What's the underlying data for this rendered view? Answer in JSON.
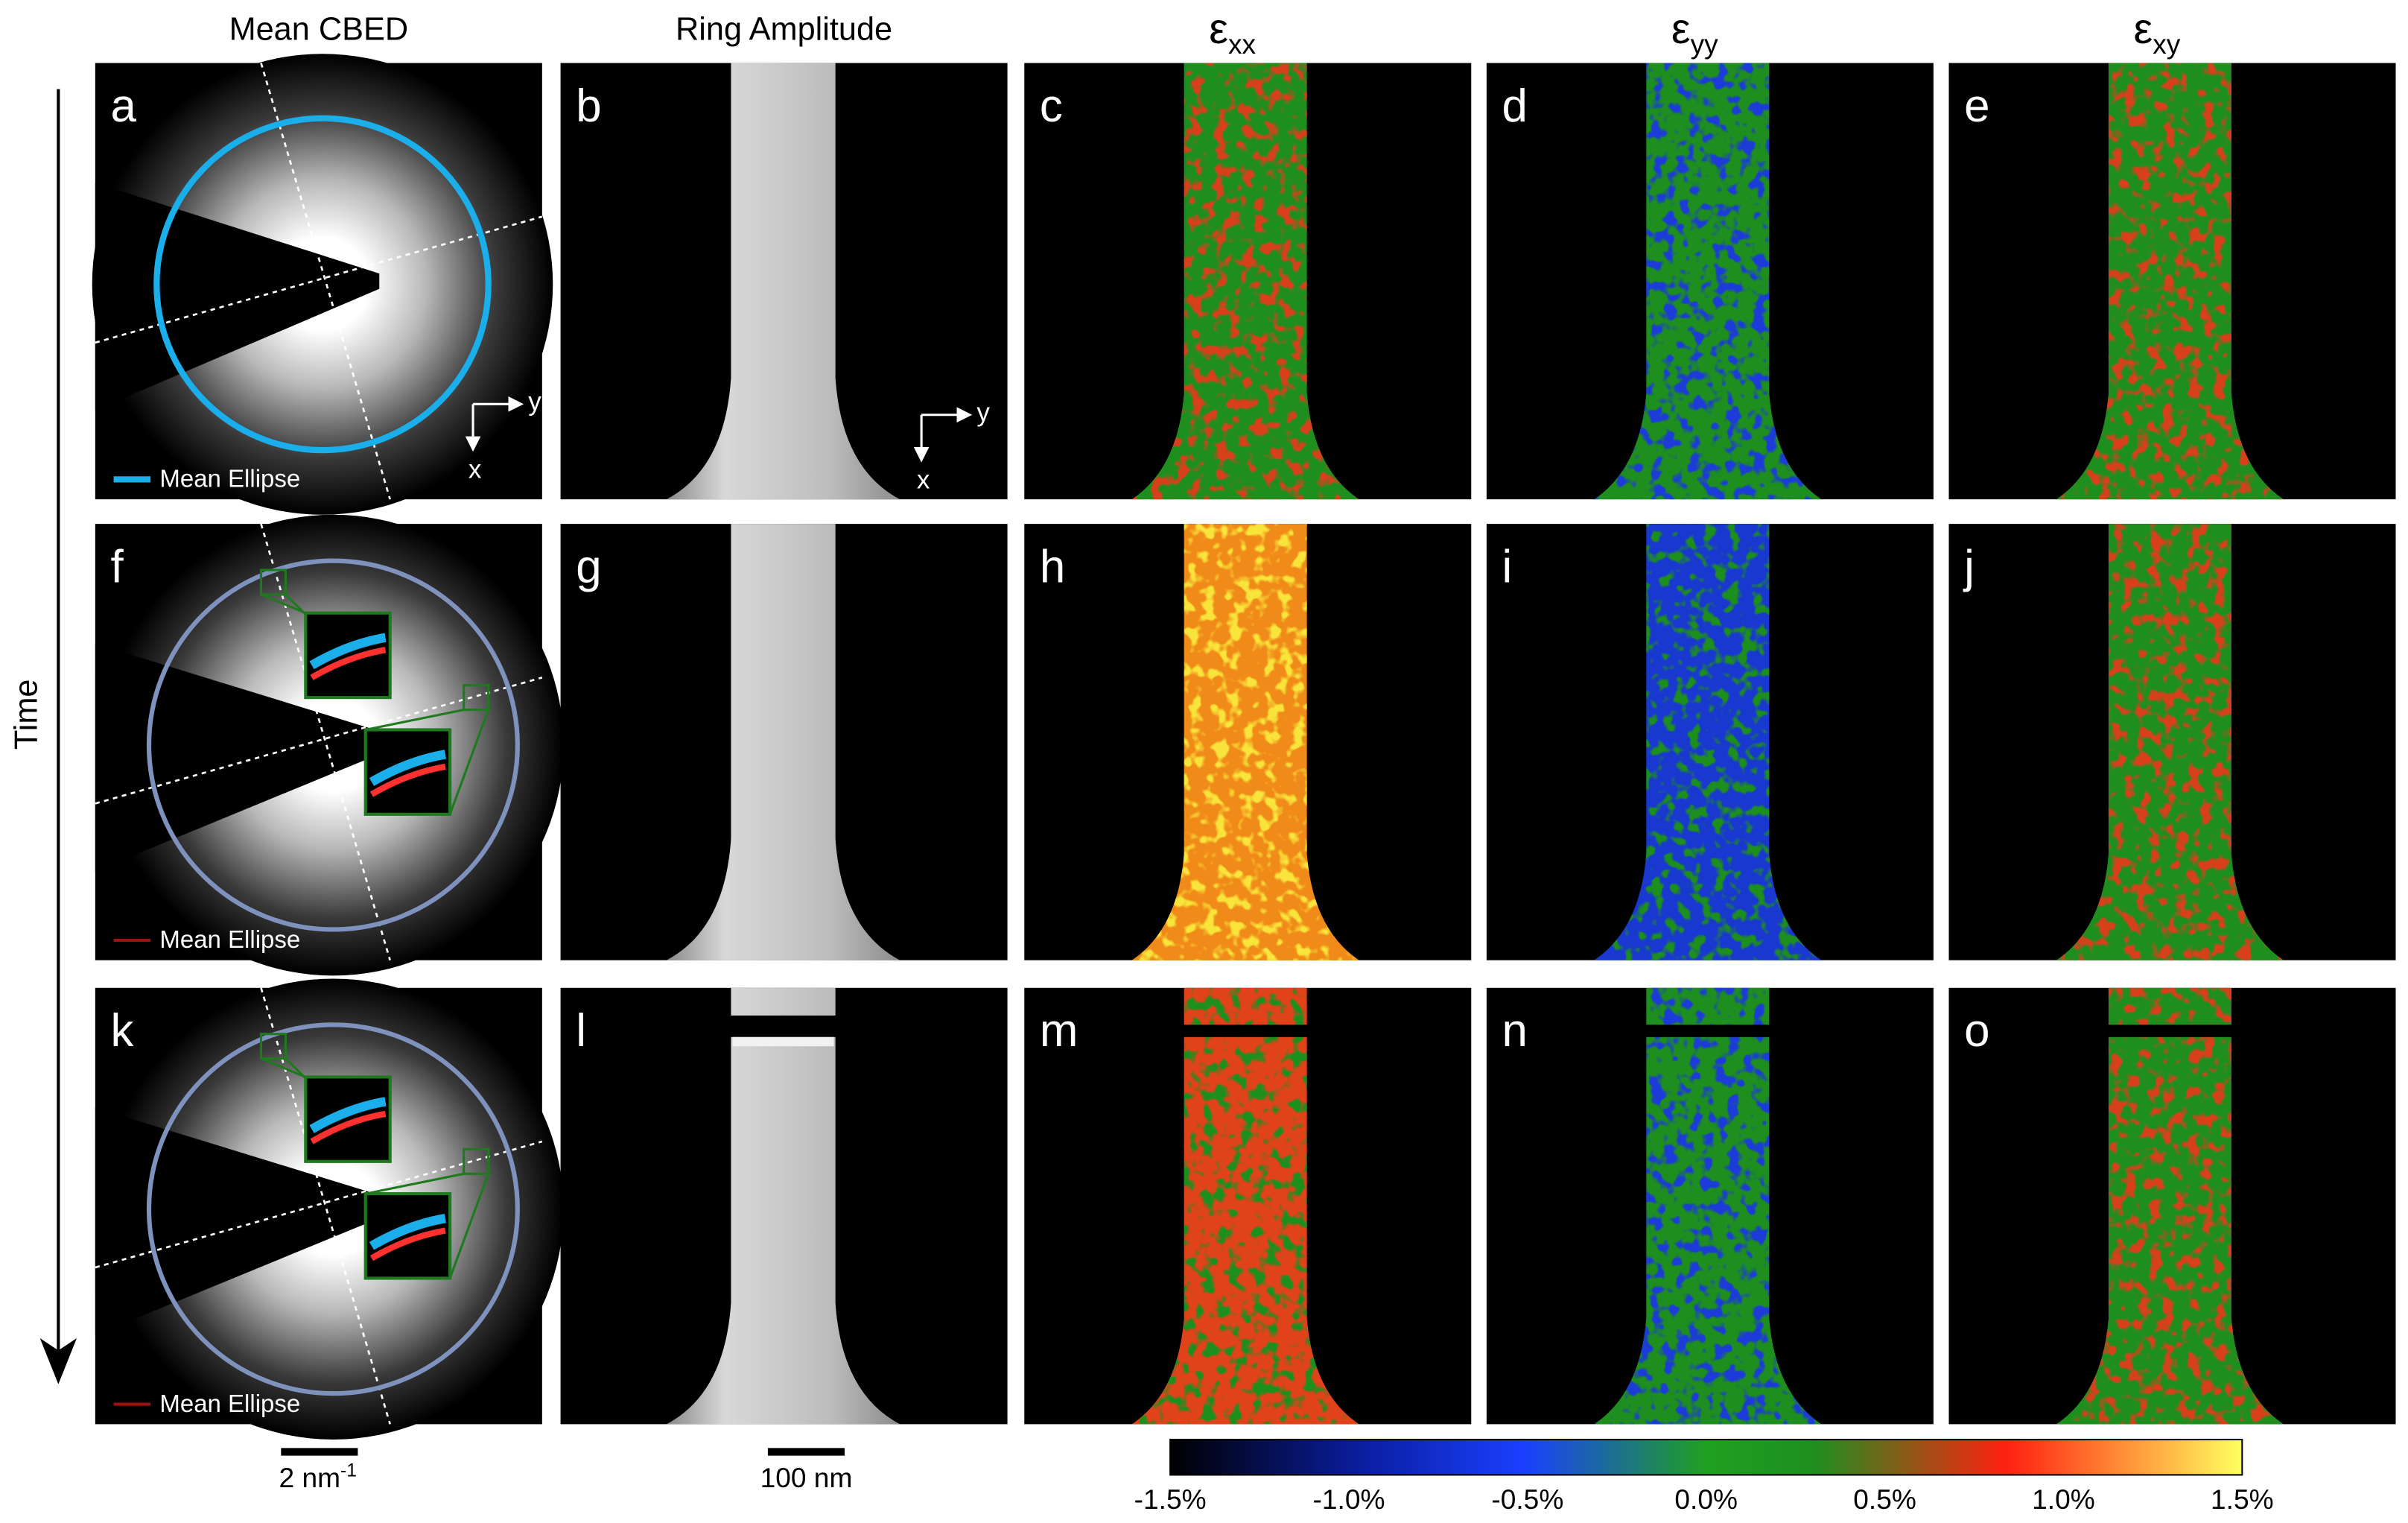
{
  "column_titles": [
    "Mean CBED",
    "Ring Amplitude"
  ],
  "strain_titles": [
    {
      "symbol": "ε",
      "subscript": "xx"
    },
    {
      "symbol": "ε",
      "subscript": "yy"
    },
    {
      "symbol": "ε",
      "subscript": "xy"
    }
  ],
  "time_label": "Time",
  "panels": [
    [
      "a",
      "b",
      "c",
      "d",
      "e"
    ],
    [
      "f",
      "g",
      "h",
      "i",
      "j"
    ],
    [
      "k",
      "l",
      "m",
      "n",
      "o"
    ]
  ],
  "legends": [
    "Mean Ellipse",
    "Mean Ellipse",
    "Mean Ellipse"
  ],
  "axis_labels": [
    {
      "y": "y",
      "x": "x"
    },
    {
      "y": "y",
      "x": "x"
    }
  ],
  "scale_bars": [
    {
      "text": "2 nm",
      "superscript": "-1"
    },
    {
      "text": "100 nm"
    }
  ],
  "colorbar": {
    "ticks": [
      "-1.5%",
      "-1.0%",
      "-0.5%",
      "0.0%",
      "0.5%",
      "1.0%",
      "1.5%"
    ]
  }
}
